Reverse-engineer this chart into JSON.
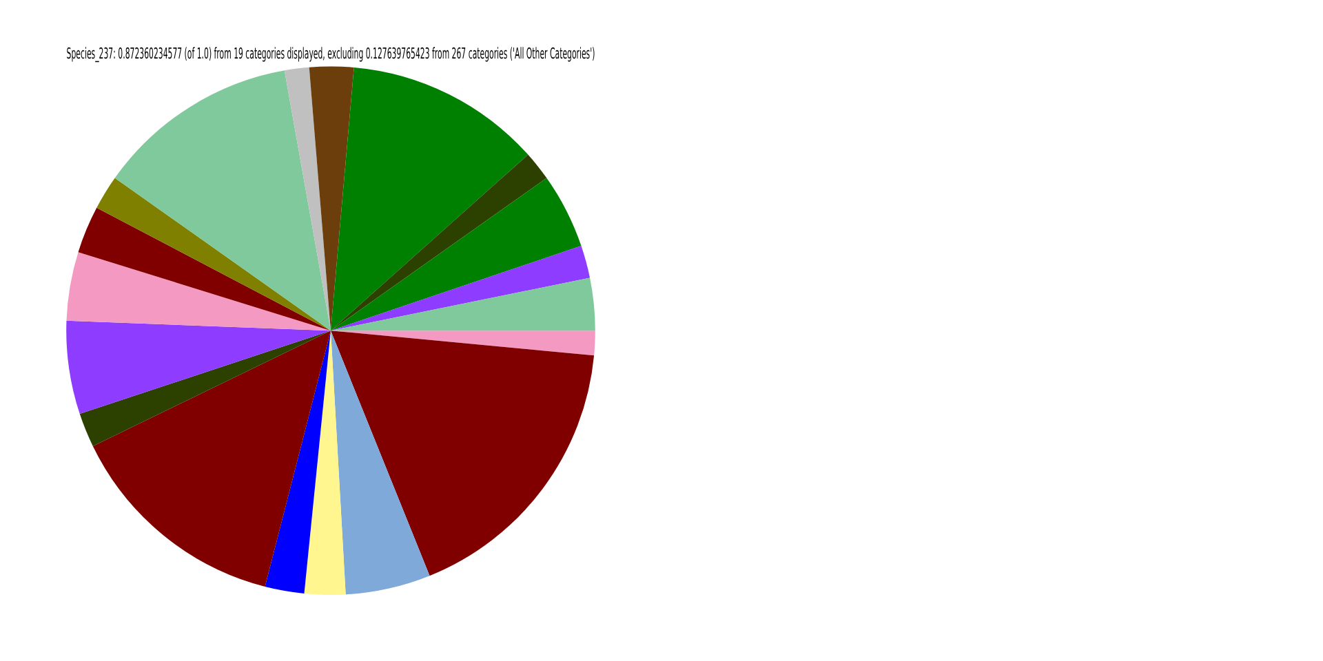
{
  "chart_data": {
    "type": "pie",
    "title": "Species_237: 0.872360234577 (of 1.0) from 19 categories displayed, excluding 0.127639765423 from 267 categories ('All Other Categories')",
    "categories": [
      null,
      null,
      null,
      null,
      null,
      null,
      null,
      null,
      null,
      null,
      null,
      null,
      null,
      null,
      null,
      null,
      null,
      null,
      null
    ],
    "values": [
      1.5,
      17.4,
      5.2,
      2.5,
      2.4,
      13.8,
      2.1,
      5.7,
      4.2,
      2.9,
      2.1,
      12.4,
      1.5,
      2.7,
      12.0,
      1.8,
      4.6,
      2.0,
      3.2
    ],
    "colors": [
      "#f49ac2",
      "#800000",
      "#7fa9d9",
      "#fff68f",
      "#0000ff",
      "#800000",
      "#2c4100",
      "#8e3cff",
      "#f49ac2",
      "#800000",
      "#808000",
      "#80c99c",
      "#c0c0c0",
      "#6b3e0c",
      "#008000",
      "#2c4100",
      "#008000",
      "#8e3cff",
      "#80c99c"
    ],
    "legend": false
  }
}
